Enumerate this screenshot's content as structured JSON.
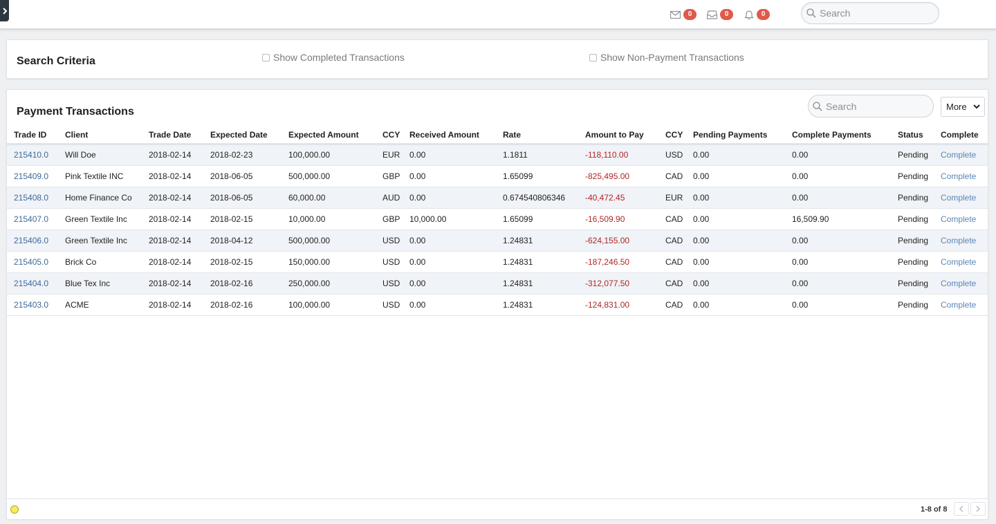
{
  "header": {
    "notifications": [
      {
        "icon": "mail-icon",
        "count": "0"
      },
      {
        "icon": "inbox-icon",
        "count": "0"
      },
      {
        "icon": "bell-icon",
        "count": "0"
      }
    ],
    "search_placeholder": "Search"
  },
  "criteria": {
    "title": "Search Criteria",
    "show_completed_label": "Show Completed Transactions",
    "show_non_payment_label": "Show Non-Payment Transactions"
  },
  "transactions": {
    "title": "Payment Transactions",
    "search_placeholder": "Search",
    "more_label": "More",
    "columns": [
      "Trade ID",
      "Client",
      "Trade Date",
      "Expected Date",
      "Expected Amount",
      "CCY",
      "Received Amount",
      "Rate",
      "Amount to Pay",
      "CCY",
      "Pending Payments",
      "Complete Payments",
      "Status",
      "Complete"
    ],
    "rows": [
      [
        "215410.0",
        "Will Doe",
        "2018-02-14",
        "2018-02-23",
        "100,000.00",
        "EUR",
        "0.00",
        "1.1811",
        "-118,110.00",
        "USD",
        "0.00",
        "0.00",
        "Pending",
        "Complete"
      ],
      [
        "215409.0",
        "Pink Textile INC",
        "2018-02-14",
        "2018-06-05",
        "500,000.00",
        "GBP",
        "0.00",
        "1.65099",
        "-825,495.00",
        "CAD",
        "0.00",
        "0.00",
        "Pending",
        "Complete"
      ],
      [
        "215408.0",
        "Home Finance Co",
        "2018-02-14",
        "2018-06-05",
        "60,000.00",
        "AUD",
        "0.00",
        "0.674540806346",
        "-40,472.45",
        "EUR",
        "0.00",
        "0.00",
        "Pending",
        "Complete"
      ],
      [
        "215407.0",
        "Green Textile Inc",
        "2018-02-14",
        "2018-02-15",
        "10,000.00",
        "GBP",
        "10,000.00",
        "1.65099",
        "-16,509.90",
        "CAD",
        "0.00",
        "16,509.90",
        "Pending",
        "Complete"
      ],
      [
        "215406.0",
        "Green Textile Inc",
        "2018-02-14",
        "2018-04-12",
        "500,000.00",
        "USD",
        "0.00",
        "1.24831",
        "-624,155.00",
        "CAD",
        "0.00",
        "0.00",
        "Pending",
        "Complete"
      ],
      [
        "215405.0",
        "Brick Co",
        "2018-02-14",
        "2018-02-15",
        "150,000.00",
        "USD",
        "0.00",
        "1.24831",
        "-187,246.50",
        "CAD",
        "0.00",
        "0.00",
        "Pending",
        "Complete"
      ],
      [
        "215404.0",
        "Blue Tex Inc",
        "2018-02-14",
        "2018-02-16",
        "250,000.00",
        "USD",
        "0.00",
        "1.24831",
        "-312,077.50",
        "CAD",
        "0.00",
        "0.00",
        "Pending",
        "Complete"
      ],
      [
        "215403.0",
        "ACME",
        "2018-02-14",
        "2018-02-16",
        "100,000.00",
        "USD",
        "0.00",
        "1.24831",
        "-124,831.00",
        "CAD",
        "0.00",
        "0.00",
        "Pending",
        "Complete"
      ]
    ],
    "pager_text": "1-8 of 8"
  },
  "colors": {
    "badge": "#e05a4a",
    "link": "#3e6a9c",
    "negative": "#b32424",
    "status_dot": "#f3ec63"
  }
}
